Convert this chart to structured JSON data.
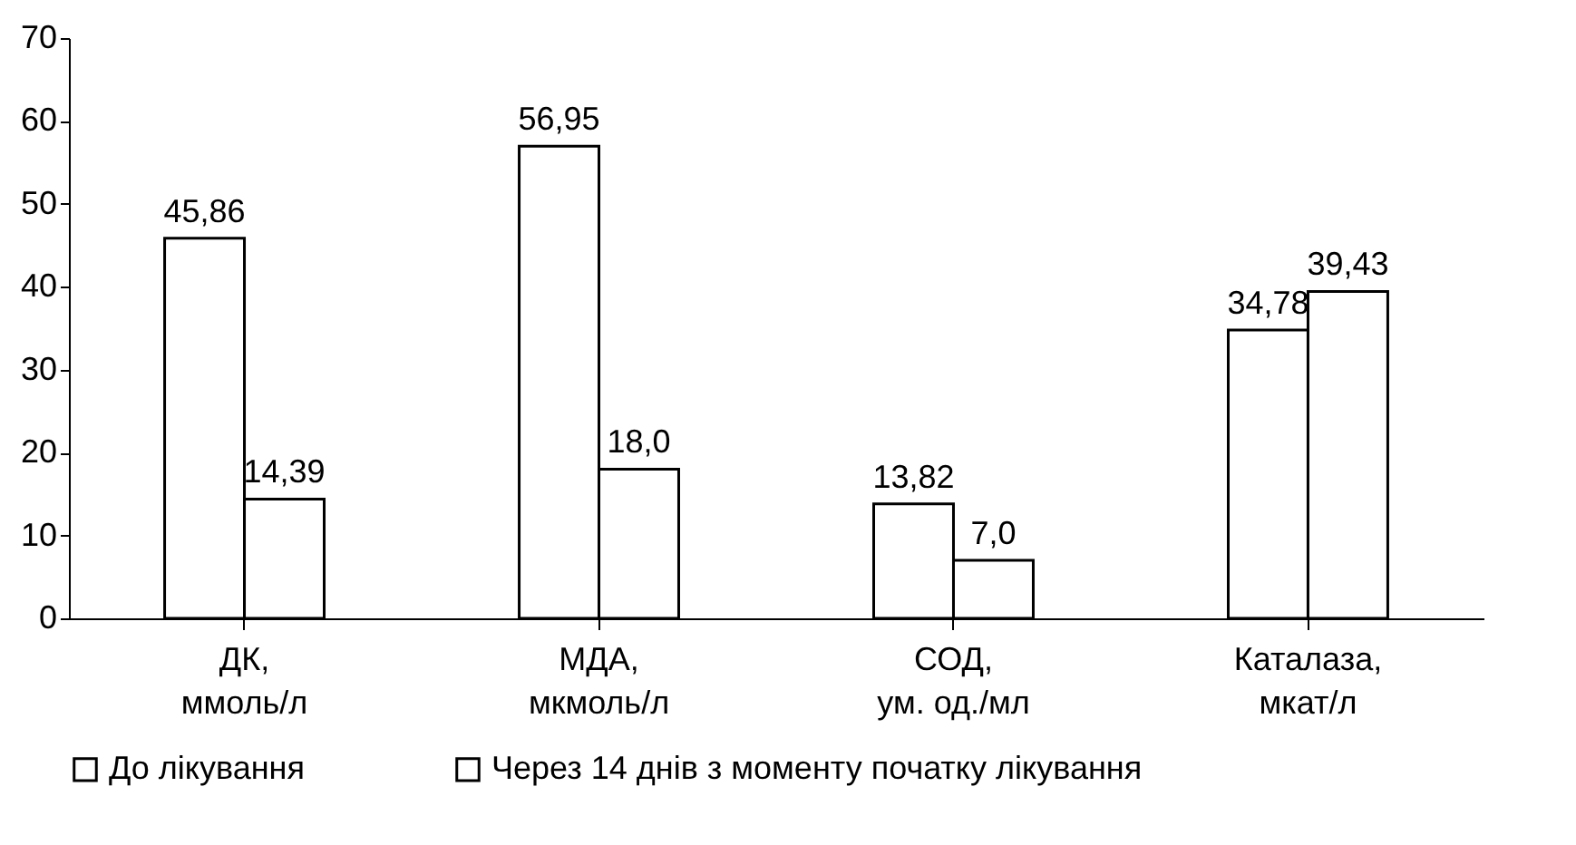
{
  "chart_data": {
    "type": "bar",
    "categories": [
      "ДК,\nммоль/л",
      "МДА,\nмкмоль/л",
      "СОД,\nум. од./мл",
      "Каталаза,\nмкат/л"
    ],
    "series": [
      {
        "name": "До лікування",
        "color": "#ffffff",
        "values": [
          45.86,
          56.95,
          13.82,
          34.78
        ],
        "value_labels": [
          "45,86",
          "56,95",
          "13,82",
          "34,78"
        ]
      },
      {
        "name": "Через 14 днів з моменту початку лікування",
        "color": "#ffffff",
        "values": [
          14.39,
          18.0,
          7.0,
          39.43
        ],
        "value_labels": [
          "14,39",
          "18,0",
          "7,0",
          "39,43"
        ]
      }
    ],
    "ylim": [
      0,
      70
    ],
    "yticks": [
      0,
      10,
      20,
      30,
      40,
      50,
      60,
      70
    ],
    "grid": false,
    "legend": "bottom"
  }
}
